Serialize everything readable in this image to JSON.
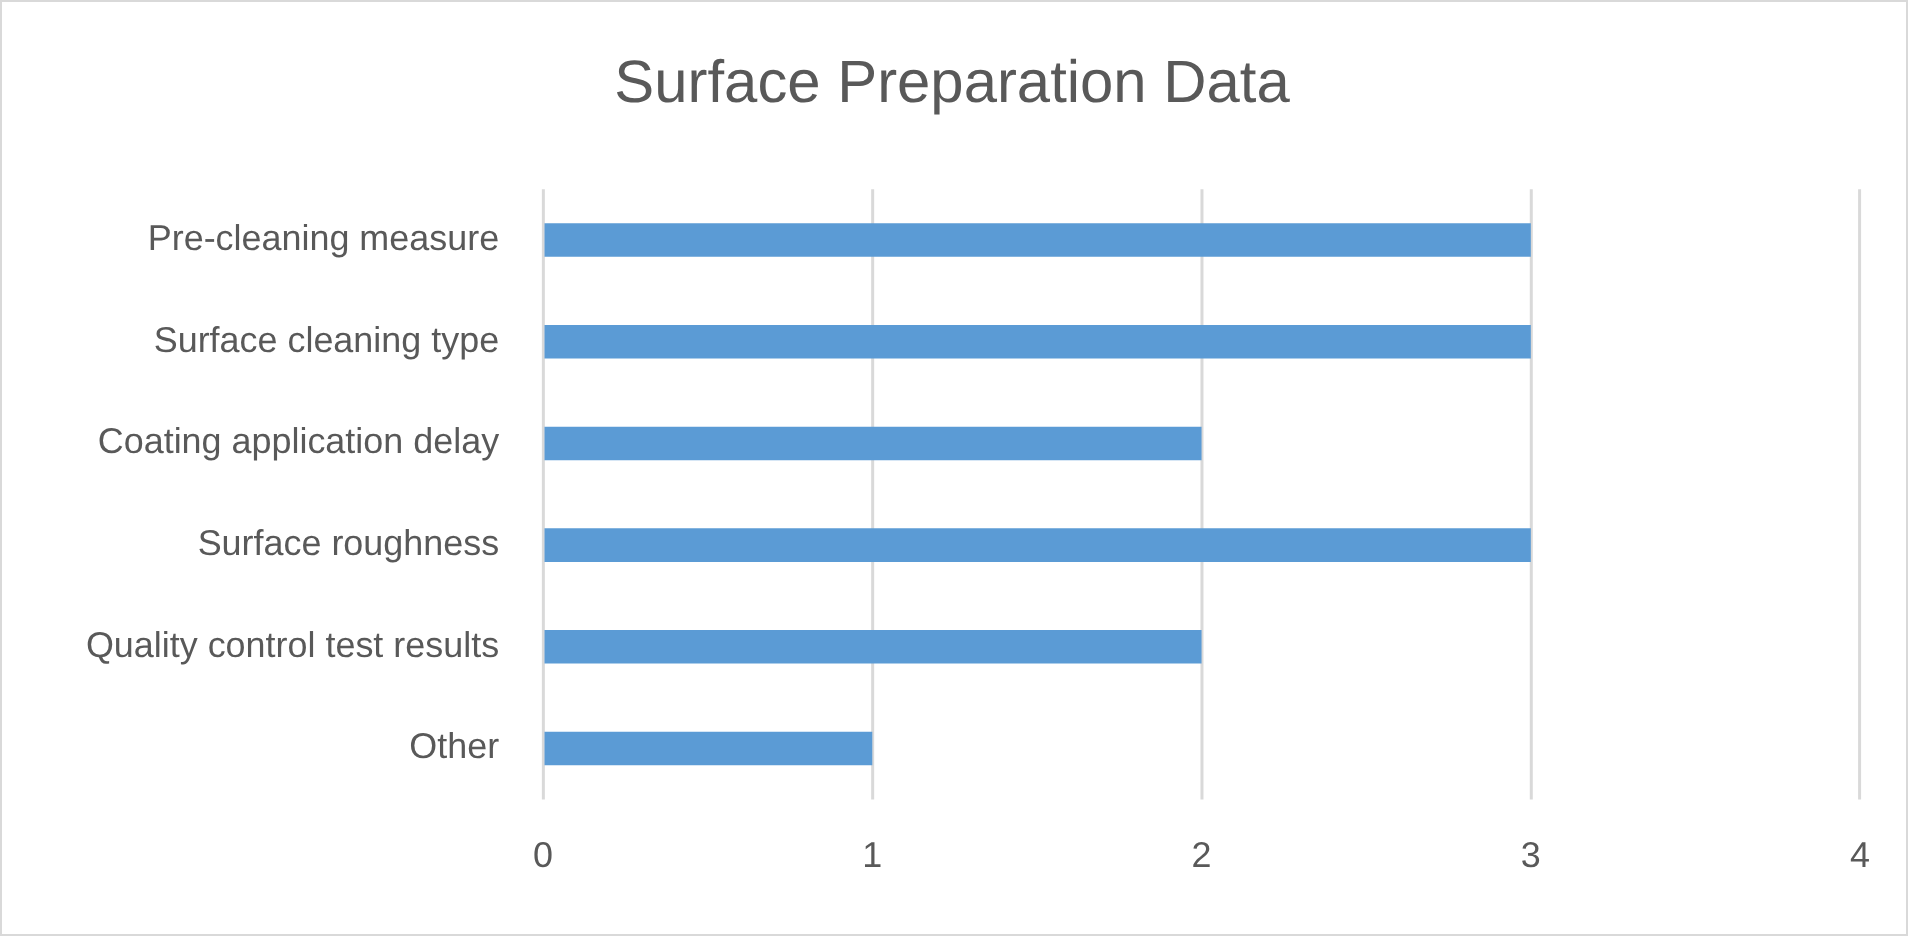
{
  "chart_data": {
    "type": "bar",
    "orientation": "horizontal",
    "title": "Surface Preparation Data",
    "categories": [
      "Pre-cleaning measure",
      "Surface cleaning type",
      "Coating application delay",
      "Surface roughness",
      "Quality control test results",
      "Other"
    ],
    "values": [
      3,
      3,
      2,
      3,
      2,
      1
    ],
    "color": "#5b9bd5",
    "xlim": [
      0,
      4
    ],
    "xticks": [
      0,
      1,
      2,
      3,
      4
    ],
    "grid": "x",
    "legend": false
  }
}
